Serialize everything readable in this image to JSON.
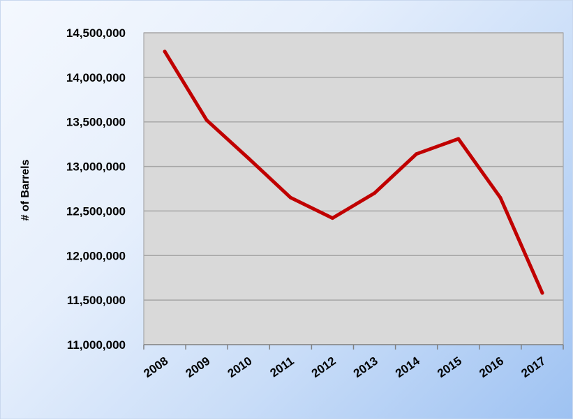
{
  "chart_data": {
    "type": "line",
    "title": "",
    "xlabel": "",
    "ylabel": "# of Barrels",
    "categories": [
      "2008",
      "2009",
      "2010",
      "2011",
      "2012",
      "2013",
      "2014",
      "2015",
      "2016",
      "2017"
    ],
    "series": [
      {
        "values": [
          14290000,
          13520000,
          13090000,
          12650000,
          12420000,
          12700000,
          13140000,
          13310000,
          12650000,
          11580000
        ],
        "color": "#c00000"
      }
    ],
    "ylim": [
      11000000,
      14500000
    ],
    "yticks": [
      11000000,
      11500000,
      12000000,
      12500000,
      13000000,
      13500000,
      14000000,
      14500000
    ],
    "ytick_labels": [
      "11,000,000",
      "11,500,000",
      "12,000,000",
      "12,500,000",
      "13,000,000",
      "13,500,000",
      "14,000,000",
      "14,500,000"
    ],
    "grid": true,
    "legend": "none",
    "plot_background": "#d9d9d9",
    "gridline_color": "#a6a6a6"
  }
}
